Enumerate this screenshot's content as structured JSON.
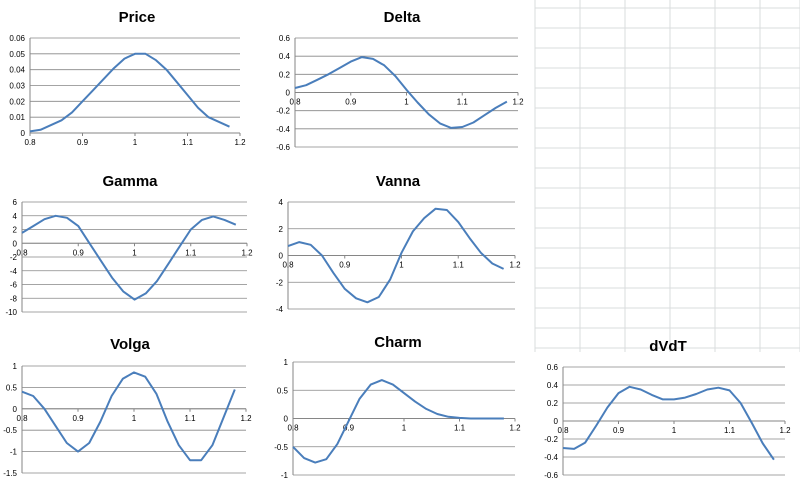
{
  "chart_data": [
    {
      "type": "line",
      "title": "Price",
      "xlim": [
        0.8,
        1.2
      ],
      "ylim": [
        0,
        0.06
      ],
      "xticks": [
        "0.8",
        "0.9",
        "1",
        "1.1",
        "1.2"
      ],
      "yticks": [
        "0",
        "0.01",
        "0.02",
        "0.03",
        "0.04",
        "0.05",
        "0.06"
      ],
      "x": [
        0.8,
        0.82,
        0.84,
        0.86,
        0.88,
        0.9,
        0.92,
        0.94,
        0.96,
        0.98,
        1.0,
        1.02,
        1.04,
        1.06,
        1.08,
        1.1,
        1.12,
        1.14,
        1.16,
        1.18
      ],
      "values": [
        0.001,
        0.002,
        0.005,
        0.008,
        0.013,
        0.02,
        0.027,
        0.034,
        0.041,
        0.047,
        0.05,
        0.05,
        0.046,
        0.04,
        0.032,
        0.024,
        0.016,
        0.01,
        0.007,
        0.004
      ]
    },
    {
      "type": "line",
      "title": "Delta",
      "xlim": [
        0.8,
        1.2
      ],
      "ylim": [
        -0.6,
        0.6
      ],
      "xticks": [
        "0.8",
        "0.9",
        "1",
        "1.1",
        "1.2"
      ],
      "yticks": [
        "-0.6",
        "-0.4",
        "-0.2",
        "0",
        "0.2",
        "0.4",
        "0.6"
      ],
      "x": [
        0.8,
        0.82,
        0.84,
        0.86,
        0.88,
        0.9,
        0.92,
        0.94,
        0.96,
        0.98,
        1.0,
        1.02,
        1.04,
        1.06,
        1.08,
        1.1,
        1.12,
        1.14,
        1.16,
        1.18
      ],
      "values": [
        0.05,
        0.08,
        0.14,
        0.2,
        0.27,
        0.34,
        0.39,
        0.37,
        0.3,
        0.18,
        0.03,
        -0.11,
        -0.24,
        -0.34,
        -0.39,
        -0.38,
        -0.33,
        -0.25,
        -0.17,
        -0.1
      ]
    },
    {
      "type": "line",
      "title": "Gamma",
      "xlim": [
        0.8,
        1.2
      ],
      "ylim": [
        -10,
        6
      ],
      "xticks": [
        "0.8",
        "0.9",
        "1",
        "1.1",
        "1.2"
      ],
      "yticks": [
        "-10",
        "-8",
        "-6",
        "-4",
        "-2",
        "0",
        "2",
        "4",
        "6"
      ],
      "x": [
        0.8,
        0.82,
        0.84,
        0.86,
        0.88,
        0.9,
        0.92,
        0.94,
        0.96,
        0.98,
        1.0,
        1.02,
        1.04,
        1.06,
        1.08,
        1.1,
        1.12,
        1.14,
        1.16,
        1.18
      ],
      "values": [
        1.5,
        2.5,
        3.5,
        4.0,
        3.7,
        2.5,
        0.0,
        -2.5,
        -5.0,
        -7.0,
        -8.2,
        -7.3,
        -5.5,
        -3.0,
        -0.5,
        2.0,
        3.4,
        3.9,
        3.4,
        2.7
      ]
    },
    {
      "type": "line",
      "title": "Vanna",
      "xlim": [
        0.8,
        1.2
      ],
      "ylim": [
        -4,
        4
      ],
      "xticks": [
        "0.8",
        "0.9",
        "1",
        "1.1",
        "1.2"
      ],
      "yticks": [
        "-4",
        "-2",
        "0",
        "2",
        "4"
      ],
      "x": [
        0.8,
        0.82,
        0.84,
        0.86,
        0.88,
        0.9,
        0.92,
        0.94,
        0.96,
        0.98,
        1.0,
        1.02,
        1.04,
        1.06,
        1.08,
        1.1,
        1.12,
        1.14,
        1.16,
        1.18
      ],
      "values": [
        0.7,
        1.0,
        0.8,
        0.0,
        -1.3,
        -2.5,
        -3.2,
        -3.5,
        -3.1,
        -1.8,
        0.2,
        1.8,
        2.8,
        3.5,
        3.4,
        2.5,
        1.3,
        0.2,
        -0.6,
        -1.0
      ]
    },
    {
      "type": "line",
      "title": "Volga",
      "xlim": [
        0.8,
        1.2
      ],
      "ylim": [
        -1.5,
        1
      ],
      "xticks": [
        "0.8",
        "0.9",
        "1",
        "1.1",
        "1.2"
      ],
      "yticks": [
        "-1.5",
        "-1",
        "-0.5",
        "0",
        "0.5",
        "1"
      ],
      "x": [
        0.8,
        0.82,
        0.84,
        0.86,
        0.88,
        0.9,
        0.92,
        0.94,
        0.96,
        0.98,
        1.0,
        1.02,
        1.04,
        1.06,
        1.08,
        1.1,
        1.12,
        1.14,
        1.16,
        1.18
      ],
      "values": [
        0.4,
        0.3,
        0.0,
        -0.4,
        -0.8,
        -1.0,
        -0.8,
        -0.3,
        0.3,
        0.7,
        0.85,
        0.75,
        0.35,
        -0.3,
        -0.85,
        -1.2,
        -1.2,
        -0.85,
        -0.2,
        0.45
      ]
    },
    {
      "type": "line",
      "title": "Charm",
      "xlim": [
        0.8,
        1.2
      ],
      "ylim": [
        -1,
        1
      ],
      "xticks": [
        "0.8",
        "0.9",
        "1",
        "1.1",
        "1.2"
      ],
      "yticks": [
        "-1",
        "-0.5",
        "0",
        "0.5",
        "1"
      ],
      "x": [
        0.8,
        0.82,
        0.84,
        0.86,
        0.88,
        0.9,
        0.92,
        0.94,
        0.96,
        0.98,
        1.0,
        1.02,
        1.04,
        1.06,
        1.08,
        1.1,
        1.12,
        1.14,
        1.16,
        1.18
      ],
      "values": [
        -0.5,
        -0.7,
        -0.78,
        -0.72,
        -0.45,
        -0.05,
        0.35,
        0.6,
        0.68,
        0.6,
        0.45,
        0.3,
        0.17,
        0.08,
        0.03,
        0.01,
        0.0,
        0.0,
        0.0,
        0.0
      ]
    },
    {
      "type": "line",
      "title": "dVdT",
      "xlim": [
        0.8,
        1.2
      ],
      "ylim": [
        -0.6,
        0.6
      ],
      "xticks": [
        "0.8",
        "0.9",
        "1",
        "1.1",
        "1.2"
      ],
      "yticks": [
        "-0.6",
        "-0.4",
        "-0.2",
        "0",
        "0.2",
        "0.4",
        "0.6"
      ],
      "x": [
        0.8,
        0.82,
        0.84,
        0.86,
        0.88,
        0.9,
        0.92,
        0.94,
        0.96,
        0.98,
        1.0,
        1.02,
        1.04,
        1.06,
        1.08,
        1.1,
        1.12,
        1.14,
        1.16,
        1.18
      ],
      "values": [
        -0.3,
        -0.31,
        -0.24,
        -0.05,
        0.15,
        0.31,
        0.38,
        0.35,
        0.29,
        0.24,
        0.24,
        0.26,
        0.3,
        0.35,
        0.37,
        0.34,
        0.2,
        -0.02,
        -0.25,
        -0.43
      ]
    }
  ]
}
